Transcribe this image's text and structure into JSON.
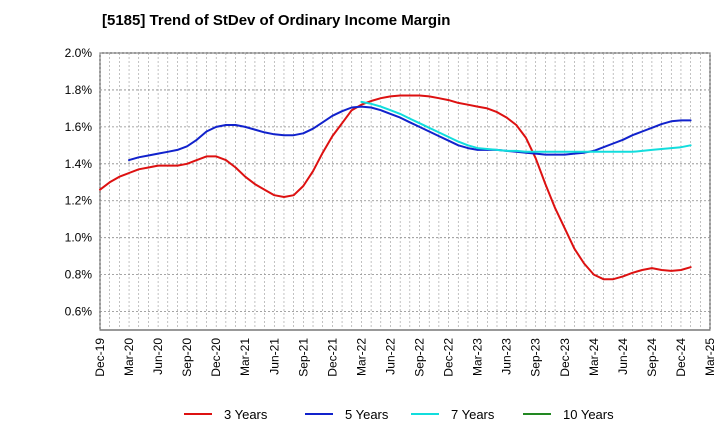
{
  "chart_data": {
    "type": "line",
    "title": "[5185]  Trend of StDev of Ordinary Income Margin",
    "xlabel": "",
    "ylabel": "",
    "y_unit": "%",
    "ylim": [
      0.5,
      2.0
    ],
    "y_ticks": [
      "0.6%",
      "0.8%",
      "1.0%",
      "1.2%",
      "1.4%",
      "1.6%",
      "1.8%",
      "2.0%"
    ],
    "x_ticks": [
      "Dec-19",
      "Mar-20",
      "Jun-20",
      "Sep-20",
      "Dec-20",
      "Mar-21",
      "Jun-21",
      "Sep-21",
      "Dec-21",
      "Mar-22",
      "Jun-22",
      "Sep-22",
      "Dec-22",
      "Mar-23",
      "Jun-23",
      "Sep-23",
      "Dec-23",
      "Mar-24",
      "Jun-24",
      "Sep-24",
      "Dec-24",
      "Mar-25"
    ],
    "grid": true,
    "legend_position": "bottom",
    "x_period": "month",
    "series": [
      {
        "name": "3 Years",
        "color": "#dd1111",
        "data": [
          [
            "Dec-19",
            1.26
          ],
          [
            "Jan-20",
            1.3
          ],
          [
            "Feb-20",
            1.33
          ],
          [
            "Mar-20",
            1.35
          ],
          [
            "Apr-20",
            1.37
          ],
          [
            "May-20",
            1.38
          ],
          [
            "Jun-20",
            1.39
          ],
          [
            "Jul-20",
            1.39
          ],
          [
            "Aug-20",
            1.39
          ],
          [
            "Sep-20",
            1.4
          ],
          [
            "Oct-20",
            1.42
          ],
          [
            "Nov-20",
            1.44
          ],
          [
            "Dec-20",
            1.44
          ],
          [
            "Jan-21",
            1.42
          ],
          [
            "Feb-21",
            1.38
          ],
          [
            "Mar-21",
            1.33
          ],
          [
            "Apr-21",
            1.29
          ],
          [
            "May-21",
            1.26
          ],
          [
            "Jun-21",
            1.23
          ],
          [
            "Jul-21",
            1.22
          ],
          [
            "Aug-21",
            1.23
          ],
          [
            "Sep-21",
            1.28
          ],
          [
            "Oct-21",
            1.36
          ],
          [
            "Nov-21",
            1.46
          ],
          [
            "Dec-21",
            1.55
          ],
          [
            "Jan-22",
            1.62
          ],
          [
            "Feb-22",
            1.69
          ],
          [
            "Mar-22",
            1.72
          ],
          [
            "Apr-22",
            1.74
          ],
          [
            "May-22",
            1.755
          ],
          [
            "Jun-22",
            1.765
          ],
          [
            "Jul-22",
            1.77
          ],
          [
            "Aug-22",
            1.77
          ],
          [
            "Sep-22",
            1.77
          ],
          [
            "Oct-22",
            1.765
          ],
          [
            "Nov-22",
            1.755
          ],
          [
            "Dec-22",
            1.745
          ],
          [
            "Jan-23",
            1.73
          ],
          [
            "Feb-23",
            1.72
          ],
          [
            "Mar-23",
            1.71
          ],
          [
            "Apr-23",
            1.7
          ],
          [
            "May-23",
            1.68
          ],
          [
            "Jun-23",
            1.65
          ],
          [
            "Jul-23",
            1.61
          ],
          [
            "Aug-23",
            1.54
          ],
          [
            "Sep-23",
            1.43
          ],
          [
            "Oct-23",
            1.29
          ],
          [
            "Nov-23",
            1.16
          ],
          [
            "Dec-23",
            1.05
          ],
          [
            "Jan-24",
            0.94
          ],
          [
            "Feb-24",
            0.86
          ],
          [
            "Mar-24",
            0.8
          ],
          [
            "Apr-24",
            0.775
          ],
          [
            "May-24",
            0.775
          ],
          [
            "Jun-24",
            0.79
          ],
          [
            "Jul-24",
            0.81
          ],
          [
            "Aug-24",
            0.825
          ],
          [
            "Sep-24",
            0.835
          ],
          [
            "Oct-24",
            0.825
          ],
          [
            "Nov-24",
            0.82
          ],
          [
            "Dec-24",
            0.825
          ],
          [
            "Jan-25",
            0.84
          ]
        ]
      },
      {
        "name": "5 Years",
        "color": "#1122cc",
        "data": [
          [
            "Mar-20",
            1.42
          ],
          [
            "Apr-20",
            1.435
          ],
          [
            "May-20",
            1.445
          ],
          [
            "Jun-20",
            1.455
          ],
          [
            "Jul-20",
            1.465
          ],
          [
            "Aug-20",
            1.475
          ],
          [
            "Sep-20",
            1.495
          ],
          [
            "Oct-20",
            1.53
          ],
          [
            "Nov-20",
            1.575
          ],
          [
            "Dec-20",
            1.6
          ],
          [
            "Jan-21",
            1.61
          ],
          [
            "Feb-21",
            1.61
          ],
          [
            "Mar-21",
            1.6
          ],
          [
            "Apr-21",
            1.585
          ],
          [
            "May-21",
            1.57
          ],
          [
            "Jun-21",
            1.56
          ],
          [
            "Jul-21",
            1.555
          ],
          [
            "Aug-21",
            1.555
          ],
          [
            "Sep-21",
            1.565
          ],
          [
            "Oct-21",
            1.59
          ],
          [
            "Nov-21",
            1.625
          ],
          [
            "Dec-21",
            1.66
          ],
          [
            "Jan-22",
            1.685
          ],
          [
            "Feb-22",
            1.705
          ],
          [
            "Mar-22",
            1.71
          ],
          [
            "Apr-22",
            1.705
          ],
          [
            "May-22",
            1.69
          ],
          [
            "Jun-22",
            1.67
          ],
          [
            "Jul-22",
            1.65
          ],
          [
            "Aug-22",
            1.625
          ],
          [
            "Sep-22",
            1.6
          ],
          [
            "Oct-22",
            1.575
          ],
          [
            "Nov-22",
            1.55
          ],
          [
            "Dec-22",
            1.525
          ],
          [
            "Jan-23",
            1.5
          ],
          [
            "Feb-23",
            1.485
          ],
          [
            "Mar-23",
            1.475
          ],
          [
            "Apr-23",
            1.475
          ],
          [
            "May-23",
            1.475
          ],
          [
            "Jun-23",
            1.47
          ],
          [
            "Jul-23",
            1.465
          ],
          [
            "Aug-23",
            1.46
          ],
          [
            "Sep-23",
            1.455
          ],
          [
            "Oct-23",
            1.45
          ],
          [
            "Nov-23",
            1.45
          ],
          [
            "Dec-23",
            1.45
          ],
          [
            "Jan-24",
            1.455
          ],
          [
            "Feb-24",
            1.46
          ],
          [
            "Mar-24",
            1.47
          ],
          [
            "Apr-24",
            1.49
          ],
          [
            "May-24",
            1.51
          ],
          [
            "Jun-24",
            1.53
          ],
          [
            "Jul-24",
            1.555
          ],
          [
            "Aug-24",
            1.575
          ],
          [
            "Sep-24",
            1.595
          ],
          [
            "Oct-24",
            1.615
          ],
          [
            "Nov-24",
            1.63
          ],
          [
            "Dec-24",
            1.635
          ],
          [
            "Jan-25",
            1.635
          ]
        ]
      },
      {
        "name": "7 Years",
        "color": "#11dddd",
        "data": [
          [
            "Mar-22",
            1.735
          ],
          [
            "Apr-22",
            1.725
          ],
          [
            "May-22",
            1.71
          ],
          [
            "Jun-22",
            1.69
          ],
          [
            "Jul-22",
            1.67
          ],
          [
            "Aug-22",
            1.645
          ],
          [
            "Sep-22",
            1.62
          ],
          [
            "Oct-22",
            1.595
          ],
          [
            "Nov-22",
            1.57
          ],
          [
            "Dec-22",
            1.545
          ],
          [
            "Jan-23",
            1.52
          ],
          [
            "Feb-23",
            1.5
          ],
          [
            "Mar-23",
            1.485
          ],
          [
            "Apr-23",
            1.48
          ],
          [
            "May-23",
            1.475
          ],
          [
            "Jun-23",
            1.47
          ],
          [
            "Jul-23",
            1.47
          ],
          [
            "Aug-23",
            1.465
          ],
          [
            "Sep-23",
            1.465
          ],
          [
            "Oct-23",
            1.465
          ],
          [
            "Nov-23",
            1.465
          ],
          [
            "Dec-23",
            1.465
          ],
          [
            "Jan-24",
            1.465
          ],
          [
            "Feb-24",
            1.465
          ],
          [
            "Mar-24",
            1.465
          ],
          [
            "Apr-24",
            1.465
          ],
          [
            "May-24",
            1.465
          ],
          [
            "Jun-24",
            1.465
          ],
          [
            "Jul-24",
            1.465
          ],
          [
            "Aug-24",
            1.47
          ],
          [
            "Sep-24",
            1.475
          ],
          [
            "Oct-24",
            1.48
          ],
          [
            "Nov-24",
            1.485
          ],
          [
            "Dec-24",
            1.49
          ],
          [
            "Jan-25",
            1.5
          ]
        ]
      },
      {
        "name": "10 Years",
        "color": "#228822",
        "data": []
      }
    ]
  }
}
